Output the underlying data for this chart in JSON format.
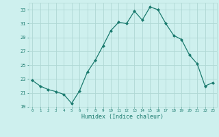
{
  "xlabel": "Humidex (Indice chaleur)",
  "x": [
    0,
    1,
    2,
    3,
    4,
    5,
    6,
    7,
    8,
    9,
    10,
    11,
    12,
    13,
    14,
    15,
    16,
    17,
    18,
    19,
    20,
    21,
    22,
    23
  ],
  "y": [
    22.8,
    22.0,
    21.5,
    21.2,
    20.8,
    19.5,
    21.3,
    24.0,
    25.7,
    27.8,
    30.0,
    31.2,
    31.0,
    32.8,
    31.5,
    33.4,
    33.0,
    31.0,
    29.3,
    28.7,
    26.5,
    25.2,
    22.0,
    22.5
  ],
  "line_color": "#1a7a6e",
  "marker": "D",
  "marker_size": 2.0,
  "bg_color": "#cef0ee",
  "grid_color": "#b0d8d4",
  "text_color": "#1a7a6e",
  "ylim": [
    19,
    34
  ],
  "xlim": [
    -0.5,
    23.5
  ],
  "yticks": [
    19,
    21,
    23,
    25,
    27,
    29,
    31,
    33
  ],
  "xticks": [
    0,
    1,
    2,
    3,
    4,
    5,
    6,
    7,
    8,
    9,
    10,
    11,
    12,
    13,
    14,
    15,
    16,
    17,
    18,
    19,
    20,
    21,
    22,
    23
  ],
  "figsize": [
    3.2,
    2.0
  ],
  "dpi": 100
}
